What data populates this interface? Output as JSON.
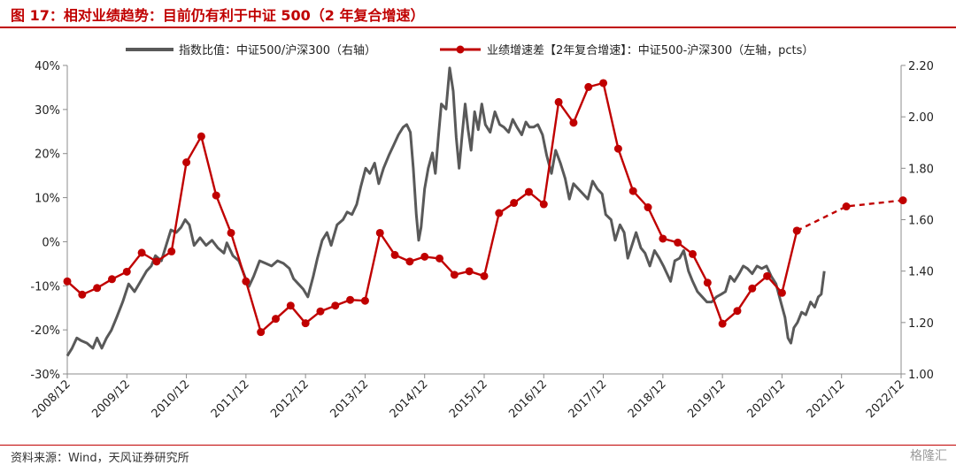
{
  "figure": {
    "title": "图 17：相对业绩趋势：目前仍有利于中证 500（2 年复合增速）",
    "source": "资料来源：Wind，天风证券研究所",
    "watermark": "格隆汇"
  },
  "colors": {
    "accent": "#c00000",
    "index_ratio_line": "#595959",
    "growth_diff_line": "#c00000",
    "axis": "#8c8c8c"
  },
  "chart_data": {
    "type": "line",
    "title": "",
    "grid": false,
    "legend_position": "top",
    "x_ticks": [
      "2008/12",
      "2009/12",
      "2010/12",
      "2011/12",
      "2012/12",
      "2013/12",
      "2014/12",
      "2015/12",
      "2016/12",
      "2017/12",
      "2018/12",
      "2019/12",
      "2020/12",
      "2021/12",
      "2022/12"
    ],
    "y_left": {
      "ticks": [
        "40%",
        "30%",
        "20%",
        "10%",
        "0%",
        "-10%",
        "-20%",
        "-30%"
      ],
      "range": [
        -30,
        40
      ],
      "unit": "%"
    },
    "y_right": {
      "ticks": [
        "2.20",
        "2.00",
        "1.80",
        "1.60",
        "1.40",
        "1.20",
        "1.00"
      ],
      "range": [
        1.0,
        2.2
      ]
    },
    "series": [
      {
        "name": "指数比值：中证500/沪深300（右轴）",
        "axis": "right",
        "style": "solid",
        "points": [
          [
            2008.92,
            1.07
          ],
          [
            2009.0,
            1.1
          ],
          [
            2009.08,
            1.14
          ],
          [
            2009.15,
            1.13
          ],
          [
            2009.25,
            1.12
          ],
          [
            2009.35,
            1.1
          ],
          [
            2009.42,
            1.14
          ],
          [
            2009.5,
            1.1
          ],
          [
            2009.58,
            1.14
          ],
          [
            2009.66,
            1.17
          ],
          [
            2009.75,
            1.22
          ],
          [
            2009.85,
            1.28
          ],
          [
            2009.95,
            1.35
          ],
          [
            2010.05,
            1.32
          ],
          [
            2010.15,
            1.36
          ],
          [
            2010.25,
            1.4
          ],
          [
            2010.33,
            1.42
          ],
          [
            2010.4,
            1.46
          ],
          [
            2010.5,
            1.44
          ],
          [
            2010.58,
            1.5
          ],
          [
            2010.66,
            1.56
          ],
          [
            2010.75,
            1.55
          ],
          [
            2010.83,
            1.57
          ],
          [
            2010.9,
            1.6
          ],
          [
            2010.97,
            1.58
          ],
          [
            2011.05,
            1.5
          ],
          [
            2011.15,
            1.53
          ],
          [
            2011.25,
            1.5
          ],
          [
            2011.35,
            1.52
          ],
          [
            2011.45,
            1.49
          ],
          [
            2011.55,
            1.47
          ],
          [
            2011.6,
            1.51
          ],
          [
            2011.7,
            1.46
          ],
          [
            2011.8,
            1.44
          ],
          [
            2011.9,
            1.38
          ],
          [
            2011.97,
            1.34
          ],
          [
            2012.05,
            1.38
          ],
          [
            2012.15,
            1.44
          ],
          [
            2012.25,
            1.43
          ],
          [
            2012.35,
            1.42
          ],
          [
            2012.45,
            1.44
          ],
          [
            2012.55,
            1.43
          ],
          [
            2012.65,
            1.41
          ],
          [
            2012.72,
            1.37
          ],
          [
            2012.8,
            1.35
          ],
          [
            2012.88,
            1.33
          ],
          [
            2012.96,
            1.3
          ],
          [
            2013.05,
            1.38
          ],
          [
            2013.12,
            1.45
          ],
          [
            2013.2,
            1.52
          ],
          [
            2013.28,
            1.55
          ],
          [
            2013.35,
            1.5
          ],
          [
            2013.45,
            1.58
          ],
          [
            2013.55,
            1.6
          ],
          [
            2013.62,
            1.63
          ],
          [
            2013.7,
            1.62
          ],
          [
            2013.78,
            1.66
          ],
          [
            2013.85,
            1.73
          ],
          [
            2013.93,
            1.8
          ],
          [
            2014.0,
            1.78
          ],
          [
            2014.08,
            1.82
          ],
          [
            2014.15,
            1.74
          ],
          [
            2014.23,
            1.8
          ],
          [
            2014.32,
            1.85
          ],
          [
            2014.4,
            1.89
          ],
          [
            2014.48,
            1.93
          ],
          [
            2014.56,
            1.96
          ],
          [
            2014.62,
            1.97
          ],
          [
            2014.68,
            1.94
          ],
          [
            2014.73,
            1.8
          ],
          [
            2014.78,
            1.62
          ],
          [
            2014.82,
            1.52
          ],
          [
            2014.86,
            1.57
          ],
          [
            2014.92,
            1.72
          ],
          [
            2014.98,
            1.8
          ],
          [
            2015.05,
            1.86
          ],
          [
            2015.1,
            1.78
          ],
          [
            2015.15,
            1.92
          ],
          [
            2015.2,
            2.05
          ],
          [
            2015.28,
            2.03
          ],
          [
            2015.34,
            2.19
          ],
          [
            2015.4,
            2.1
          ],
          [
            2015.45,
            1.92
          ],
          [
            2015.5,
            1.8
          ],
          [
            2015.55,
            1.93
          ],
          [
            2015.6,
            2.05
          ],
          [
            2015.65,
            1.95
          ],
          [
            2015.7,
            1.87
          ],
          [
            2015.76,
            2.02
          ],
          [
            2015.82,
            1.95
          ],
          [
            2015.88,
            2.05
          ],
          [
            2015.94,
            1.97
          ],
          [
            2016.02,
            1.94
          ],
          [
            2016.1,
            2.02
          ],
          [
            2016.18,
            1.97
          ],
          [
            2016.25,
            1.96
          ],
          [
            2016.33,
            1.94
          ],
          [
            2016.4,
            1.99
          ],
          [
            2016.47,
            1.96
          ],
          [
            2016.55,
            1.93
          ],
          [
            2016.62,
            1.98
          ],
          [
            2016.68,
            1.96
          ],
          [
            2016.75,
            1.96
          ],
          [
            2016.82,
            1.97
          ],
          [
            2016.9,
            1.93
          ],
          [
            2016.97,
            1.85
          ],
          [
            2017.05,
            1.78
          ],
          [
            2017.12,
            1.87
          ],
          [
            2017.2,
            1.82
          ],
          [
            2017.28,
            1.76
          ],
          [
            2017.35,
            1.68
          ],
          [
            2017.42,
            1.74
          ],
          [
            2017.5,
            1.72
          ],
          [
            2017.58,
            1.7
          ],
          [
            2017.66,
            1.68
          ],
          [
            2017.74,
            1.75
          ],
          [
            2017.82,
            1.72
          ],
          [
            2017.9,
            1.7
          ],
          [
            2017.96,
            1.62
          ],
          [
            2018.05,
            1.6
          ],
          [
            2018.12,
            1.52
          ],
          [
            2018.2,
            1.58
          ],
          [
            2018.27,
            1.55
          ],
          [
            2018.33,
            1.45
          ],
          [
            2018.4,
            1.5
          ],
          [
            2018.47,
            1.55
          ],
          [
            2018.55,
            1.49
          ],
          [
            2018.62,
            1.47
          ],
          [
            2018.7,
            1.42
          ],
          [
            2018.78,
            1.48
          ],
          [
            2018.86,
            1.45
          ],
          [
            2018.93,
            1.42
          ],
          [
            2018.97,
            1.4
          ],
          [
            2019.05,
            1.36
          ],
          [
            2019.12,
            1.44
          ],
          [
            2019.2,
            1.45
          ],
          [
            2019.27,
            1.48
          ],
          [
            2019.35,
            1.4
          ],
          [
            2019.42,
            1.36
          ],
          [
            2019.5,
            1.32
          ],
          [
            2019.58,
            1.3
          ],
          [
            2019.66,
            1.28
          ],
          [
            2019.74,
            1.28
          ],
          [
            2019.82,
            1.3
          ],
          [
            2019.9,
            1.31
          ],
          [
            2019.97,
            1.32
          ],
          [
            2020.05,
            1.38
          ],
          [
            2020.12,
            1.36
          ],
          [
            2020.2,
            1.39
          ],
          [
            2020.27,
            1.42
          ],
          [
            2020.34,
            1.41
          ],
          [
            2020.42,
            1.39
          ],
          [
            2020.5,
            1.42
          ],
          [
            2020.58,
            1.41
          ],
          [
            2020.66,
            1.42
          ],
          [
            2020.74,
            1.38
          ],
          [
            2020.82,
            1.35
          ],
          [
            2020.9,
            1.28
          ],
          [
            2020.97,
            1.22
          ],
          [
            2021.02,
            1.14
          ],
          [
            2021.07,
            1.12
          ],
          [
            2021.12,
            1.18
          ],
          [
            2021.18,
            1.2
          ],
          [
            2021.25,
            1.24
          ],
          [
            2021.32,
            1.23
          ],
          [
            2021.4,
            1.28
          ],
          [
            2021.47,
            1.26
          ],
          [
            2021.53,
            1.3
          ],
          [
            2021.58,
            1.31
          ],
          [
            2021.63,
            1.4
          ]
        ]
      },
      {
        "name": "业绩增速差【2年复合增速】：中证500-沪深300（左轴，pcts）",
        "axis": "left",
        "style": "solid-markers",
        "points": [
          [
            2008.92,
            -9.0
          ],
          [
            2009.17,
            -12.0
          ],
          [
            2009.42,
            -10.5
          ],
          [
            2009.67,
            -8.5
          ],
          [
            2009.92,
            -6.8
          ],
          [
            2010.17,
            -2.5
          ],
          [
            2010.42,
            -4.5
          ],
          [
            2010.67,
            -2.2
          ],
          [
            2010.92,
            18.0
          ],
          [
            2011.17,
            23.9
          ],
          [
            2011.42,
            10.5
          ],
          [
            2011.67,
            2.0
          ],
          [
            2011.92,
            -9.0
          ],
          [
            2012.17,
            -20.5
          ],
          [
            2012.42,
            -17.5
          ],
          [
            2012.67,
            -14.5
          ],
          [
            2012.92,
            -18.5
          ],
          [
            2013.17,
            -15.8
          ],
          [
            2013.42,
            -14.5
          ],
          [
            2013.67,
            -13.2
          ],
          [
            2013.92,
            -13.4
          ],
          [
            2014.17,
            2.0
          ],
          [
            2014.42,
            -3.0
          ],
          [
            2014.67,
            -4.5
          ],
          [
            2014.92,
            -3.4
          ],
          [
            2015.17,
            -3.8
          ],
          [
            2015.42,
            -7.5
          ],
          [
            2015.67,
            -6.7
          ],
          [
            2015.92,
            -7.8
          ],
          [
            2016.17,
            6.5
          ],
          [
            2016.42,
            8.8
          ],
          [
            2016.67,
            11.3
          ],
          [
            2016.92,
            8.5
          ],
          [
            2017.17,
            31.7
          ],
          [
            2017.42,
            27.0
          ],
          [
            2017.67,
            35.1
          ],
          [
            2017.92,
            36.0
          ],
          [
            2018.17,
            21.1
          ],
          [
            2018.42,
            11.5
          ],
          [
            2018.67,
            7.8
          ],
          [
            2018.92,
            0.7
          ],
          [
            2019.17,
            -0.2
          ],
          [
            2019.42,
            -2.8
          ],
          [
            2019.67,
            -9.3
          ],
          [
            2019.92,
            -18.6
          ],
          [
            2020.17,
            -15.7
          ],
          [
            2020.42,
            -10.6
          ],
          [
            2020.67,
            -7.8
          ],
          [
            2020.92,
            -11.6
          ],
          [
            2021.17,
            2.5
          ]
        ]
      },
      {
        "name": "",
        "axis": "left",
        "style": "dashed-markers",
        "points": [
          [
            2021.17,
            2.5
          ],
          [
            2022.0,
            8.0
          ],
          [
            2022.95,
            9.4
          ]
        ]
      }
    ]
  }
}
